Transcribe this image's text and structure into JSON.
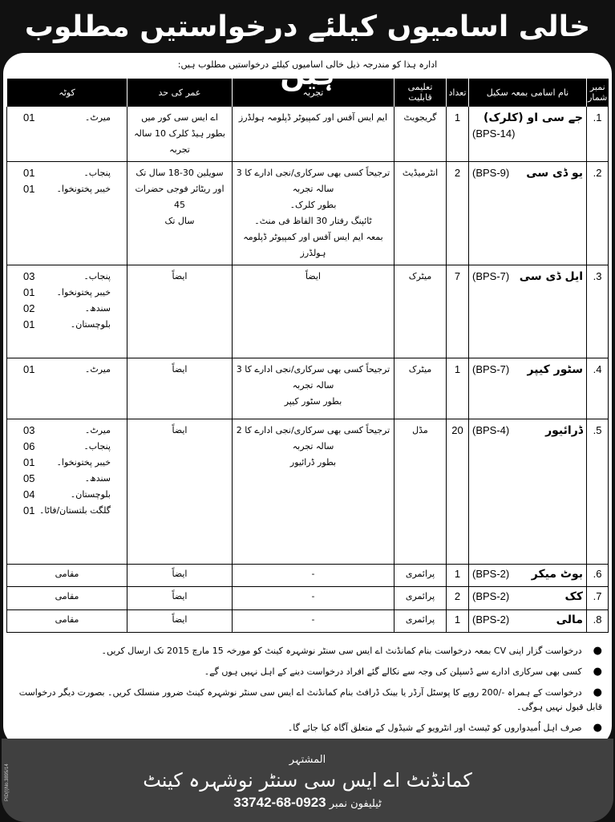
{
  "headline": "خالی اسامیوں کیلئے درخواستیں مطلوب ہیں",
  "intro": "ادارہ ہذا کو مندرجہ ذیل خالی اسامیوں کیلئے درخواستیں مطلوب ہیں:",
  "table": {
    "headers": [
      "نمبر شمار",
      "نام اسامی بمعہ سکیل",
      "تعداد",
      "تعلیمی قابلیت",
      "تجربہ",
      "عمر کی حد",
      "کوٹہ"
    ],
    "rows": [
      {
        "no": "1.",
        "name": "جے سی او (کلرک)",
        "bps": "(BPS-14)",
        "count": "1",
        "qual": "گریجویٹ",
        "exp": [
          "ایم ایس آفس اور کمپیوٹر ڈپلومہ ہولڈرز"
        ],
        "age": [
          "اے ایس سی کور میں",
          "بطور ہیڈ کلرک 10 سالہ تجربہ"
        ],
        "quota": [
          {
            "area": "میرٹ۔",
            "n": "01"
          }
        ]
      },
      {
        "no": "2.",
        "name": "یو ڈی سی",
        "bps": "(BPS-9)",
        "count": "2",
        "qual": "انٹرمیڈیٹ",
        "exp": [
          "ترجیحاً کسی بھی سرکاری/نجی ادارے کا 3 سالہ تجربہ",
          "بطور کلرک۔",
          "ٹائپنگ رفتار 30 الفاظ فی منٹ۔",
          "بمعہ ایم ایس آفس اور کمپیوٹر ڈپلومہ ہولڈرز"
        ],
        "age": [
          "سویلین 30-18 سال تک",
          "اور ریٹائر فوجی حضرات 45",
          "سال تک"
        ],
        "quota": [
          {
            "area": "پنجاب۔",
            "n": "01"
          },
          {
            "area": "خیبر پختونخوا۔",
            "n": "01"
          }
        ]
      },
      {
        "no": "3.",
        "name": "ایل ڈی سی",
        "bps": "(BPS-7)",
        "count": "7",
        "qual": "میٹرک",
        "exp": [
          "ایضاً"
        ],
        "age": [
          "ایضاً"
        ],
        "quota": [
          {
            "area": "پنجاب۔",
            "n": "03"
          },
          {
            "area": "خیبر پختونخوا۔",
            "n": "01"
          },
          {
            "area": "سندھ۔",
            "n": "02"
          },
          {
            "area": "بلوچستان۔",
            "n": "01"
          }
        ]
      },
      {
        "no": "4.",
        "name": "سٹور کیپر",
        "bps": "(BPS-7)",
        "count": "1",
        "qual": "میٹرک",
        "exp": [
          "ترجیحاً کسی بھی سرکاری/نجی ادارے کا 3 سالہ تجربہ",
          "بطور سٹور کیپر"
        ],
        "age": [
          "ایضاً"
        ],
        "quota": [
          {
            "area": "میرٹ۔",
            "n": "01"
          }
        ]
      },
      {
        "no": "5.",
        "name": "ڈرائیور",
        "bps": "(BPS-4)",
        "count": "20",
        "qual": "مڈل",
        "exp": [
          "ترجیحاً کسی بھی سرکاری/نجی ادارے کا 2 سالہ تجربہ",
          "بطور ڈرائیور"
        ],
        "age": [
          "ایضاً"
        ],
        "quota": [
          {
            "area": "میرٹ۔",
            "n": "03"
          },
          {
            "area": "پنجاب۔",
            "n": "06"
          },
          {
            "area": "خیبر پختونخوا۔",
            "n": "01"
          },
          {
            "area": "سندھ۔",
            "n": "05"
          },
          {
            "area": "بلوچستان۔",
            "n": "04"
          },
          {
            "area": "گلگت بلتستان/فاٹا۔",
            "n": "01"
          }
        ]
      },
      {
        "no": "6.",
        "name": "بوٹ میکر",
        "bps": "(BPS-2)",
        "count": "1",
        "qual": "پرائمری",
        "exp": [
          "-"
        ],
        "age": [
          "ایضاً"
        ],
        "quota_text": "مقامی"
      },
      {
        "no": "7.",
        "name": "کک",
        "bps": "(BPS-2)",
        "count": "2",
        "qual": "پرائمری",
        "exp": [
          "-"
        ],
        "age": [
          "ایضاً"
        ],
        "quota_text": "مقامی"
      },
      {
        "no": "8.",
        "name": "مالی",
        "bps": "(BPS-2)",
        "count": "1",
        "qual": "پرائمری",
        "exp": [
          "-"
        ],
        "age": [
          "ایضاً"
        ],
        "quota_text": "مقامی"
      }
    ]
  },
  "notes": [
    "درخواست گزار اپنی CV بمعہ درخواست بنام کمانڈنٹ اے ایس سی سنٹر نوشہرہ کینٹ کو مورخہ 15 مارچ 2015 تک ارسال کریں۔",
    "کسی بھی سرکاری ادارے سے ڈسپلن کی وجہ سے نکالے گئے افراد درخواست دینے کے اہل نہیں ہوں گے۔",
    "درخواست کے ہمراہ -/200 روپے کا پوسٹل آرڈر یا بینک ڈرافٹ بنام کمانڈنٹ اے ایس سی سنٹر نوشہرہ کینٹ ضرور منسلک کریں۔ بصورت دیگر درخواست قابل قبول نہیں ہوگی۔",
    "صرف اہل اُمیدواروں کو ٹیسٹ اور انٹرویو کے شیڈول کے متعلق آگاہ کیا جائے گا۔"
  ],
  "advertiser": {
    "label": "المشتہر",
    "name": "کمانڈنٹ اے ایس سی سنٹر نوشہرہ کینٹ",
    "phone_label": "ٹیلیفون نمبر",
    "phone": "0923-68-33742"
  },
  "pid": "PID(I)No.3895/14"
}
